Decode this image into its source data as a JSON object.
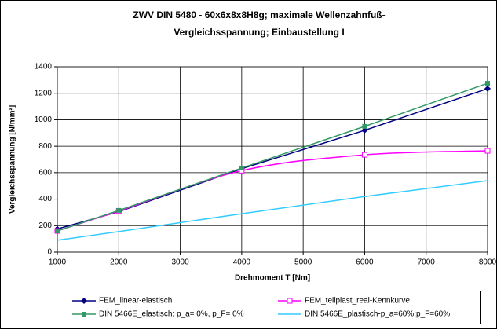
{
  "chart_data": {
    "type": "line",
    "title": [
      "ZWV DIN 5480 - 60x6x8x8H8g; maximale Wellenzahnfuß-",
      "Vergleichsspannung; Einbaustellung I"
    ],
    "xlabel": "Drehmoment T [Nm]",
    "ylabel": "Vergleichsspannung [N/mm²]",
    "x": [
      1000,
      2000,
      4000,
      6000,
      8000
    ],
    "series": [
      {
        "name": "FEM_linear-elastisch",
        "color": "#000080",
        "marker": "diamond",
        "values": [
          175,
          305,
          630,
          920,
          1235
        ]
      },
      {
        "name": "FEM_teilplast_real-Kennkurve",
        "color": "#ff00ff",
        "marker": "open-square",
        "smooth": true,
        "values": [
          160,
          310,
          615,
          735,
          765
        ]
      },
      {
        "name": "DIN 5466E_elastisch; p_a= 0%, p_F= 0%",
        "color": "#339966",
        "marker": "square",
        "values": [
          160,
          315,
          635,
          950,
          1275
        ]
      },
      {
        "name": "DIN 5466E_plastisch-p_a=60%;p_F=60%",
        "color": "#33ccff",
        "marker": "none",
        "values": [
          90,
          155,
          290,
          420,
          540
        ]
      }
    ],
    "xlim": [
      1000,
      8000
    ],
    "xticks": [
      1000,
      2000,
      3000,
      4000,
      5000,
      6000,
      7000,
      8000
    ],
    "ylim": [
      0,
      1400
    ],
    "yticks": [
      0,
      200,
      400,
      600,
      800,
      1000,
      1200,
      1400
    ],
    "grid": true
  }
}
